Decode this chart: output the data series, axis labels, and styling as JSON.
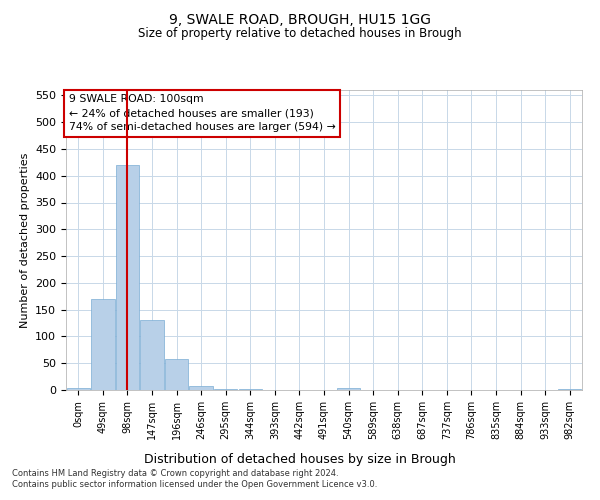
{
  "title1": "9, SWALE ROAD, BROUGH, HU15 1GG",
  "title2": "Size of property relative to detached houses in Brough",
  "xlabel": "Distribution of detached houses by size in Brough",
  "ylabel": "Number of detached properties",
  "footnote1": "Contains HM Land Registry data © Crown copyright and database right 2024.",
  "footnote2": "Contains public sector information licensed under the Open Government Licence v3.0.",
  "bin_labels": [
    "0sqm",
    "49sqm",
    "98sqm",
    "147sqm",
    "196sqm",
    "246sqm",
    "295sqm",
    "344sqm",
    "393sqm",
    "442sqm",
    "491sqm",
    "540sqm",
    "589sqm",
    "638sqm",
    "687sqm",
    "737sqm",
    "786sqm",
    "835sqm",
    "884sqm",
    "933sqm",
    "982sqm"
  ],
  "bar_values": [
    3,
    170,
    420,
    130,
    57,
    7,
    2,
    1,
    0,
    0,
    0,
    4,
    0,
    0,
    0,
    0,
    0,
    0,
    0,
    0,
    2
  ],
  "bar_color": "#b8d0e8",
  "bar_edge_color": "#7aadd4",
  "ylim": [
    0,
    560
  ],
  "yticks": [
    0,
    50,
    100,
    150,
    200,
    250,
    300,
    350,
    400,
    450,
    500,
    550
  ],
  "annotation_title": "9 SWALE ROAD: 100sqm",
  "annotation_line1": "← 24% of detached houses are smaller (193)",
  "annotation_line2": "74% of semi-detached houses are larger (594) →",
  "vline_color": "#cc0000",
  "vline_x": 2,
  "annotation_box_color": "#ffffff",
  "annotation_box_edge": "#cc0000",
  "bg_color": "#ffffff",
  "grid_color": "#c8d8e8"
}
